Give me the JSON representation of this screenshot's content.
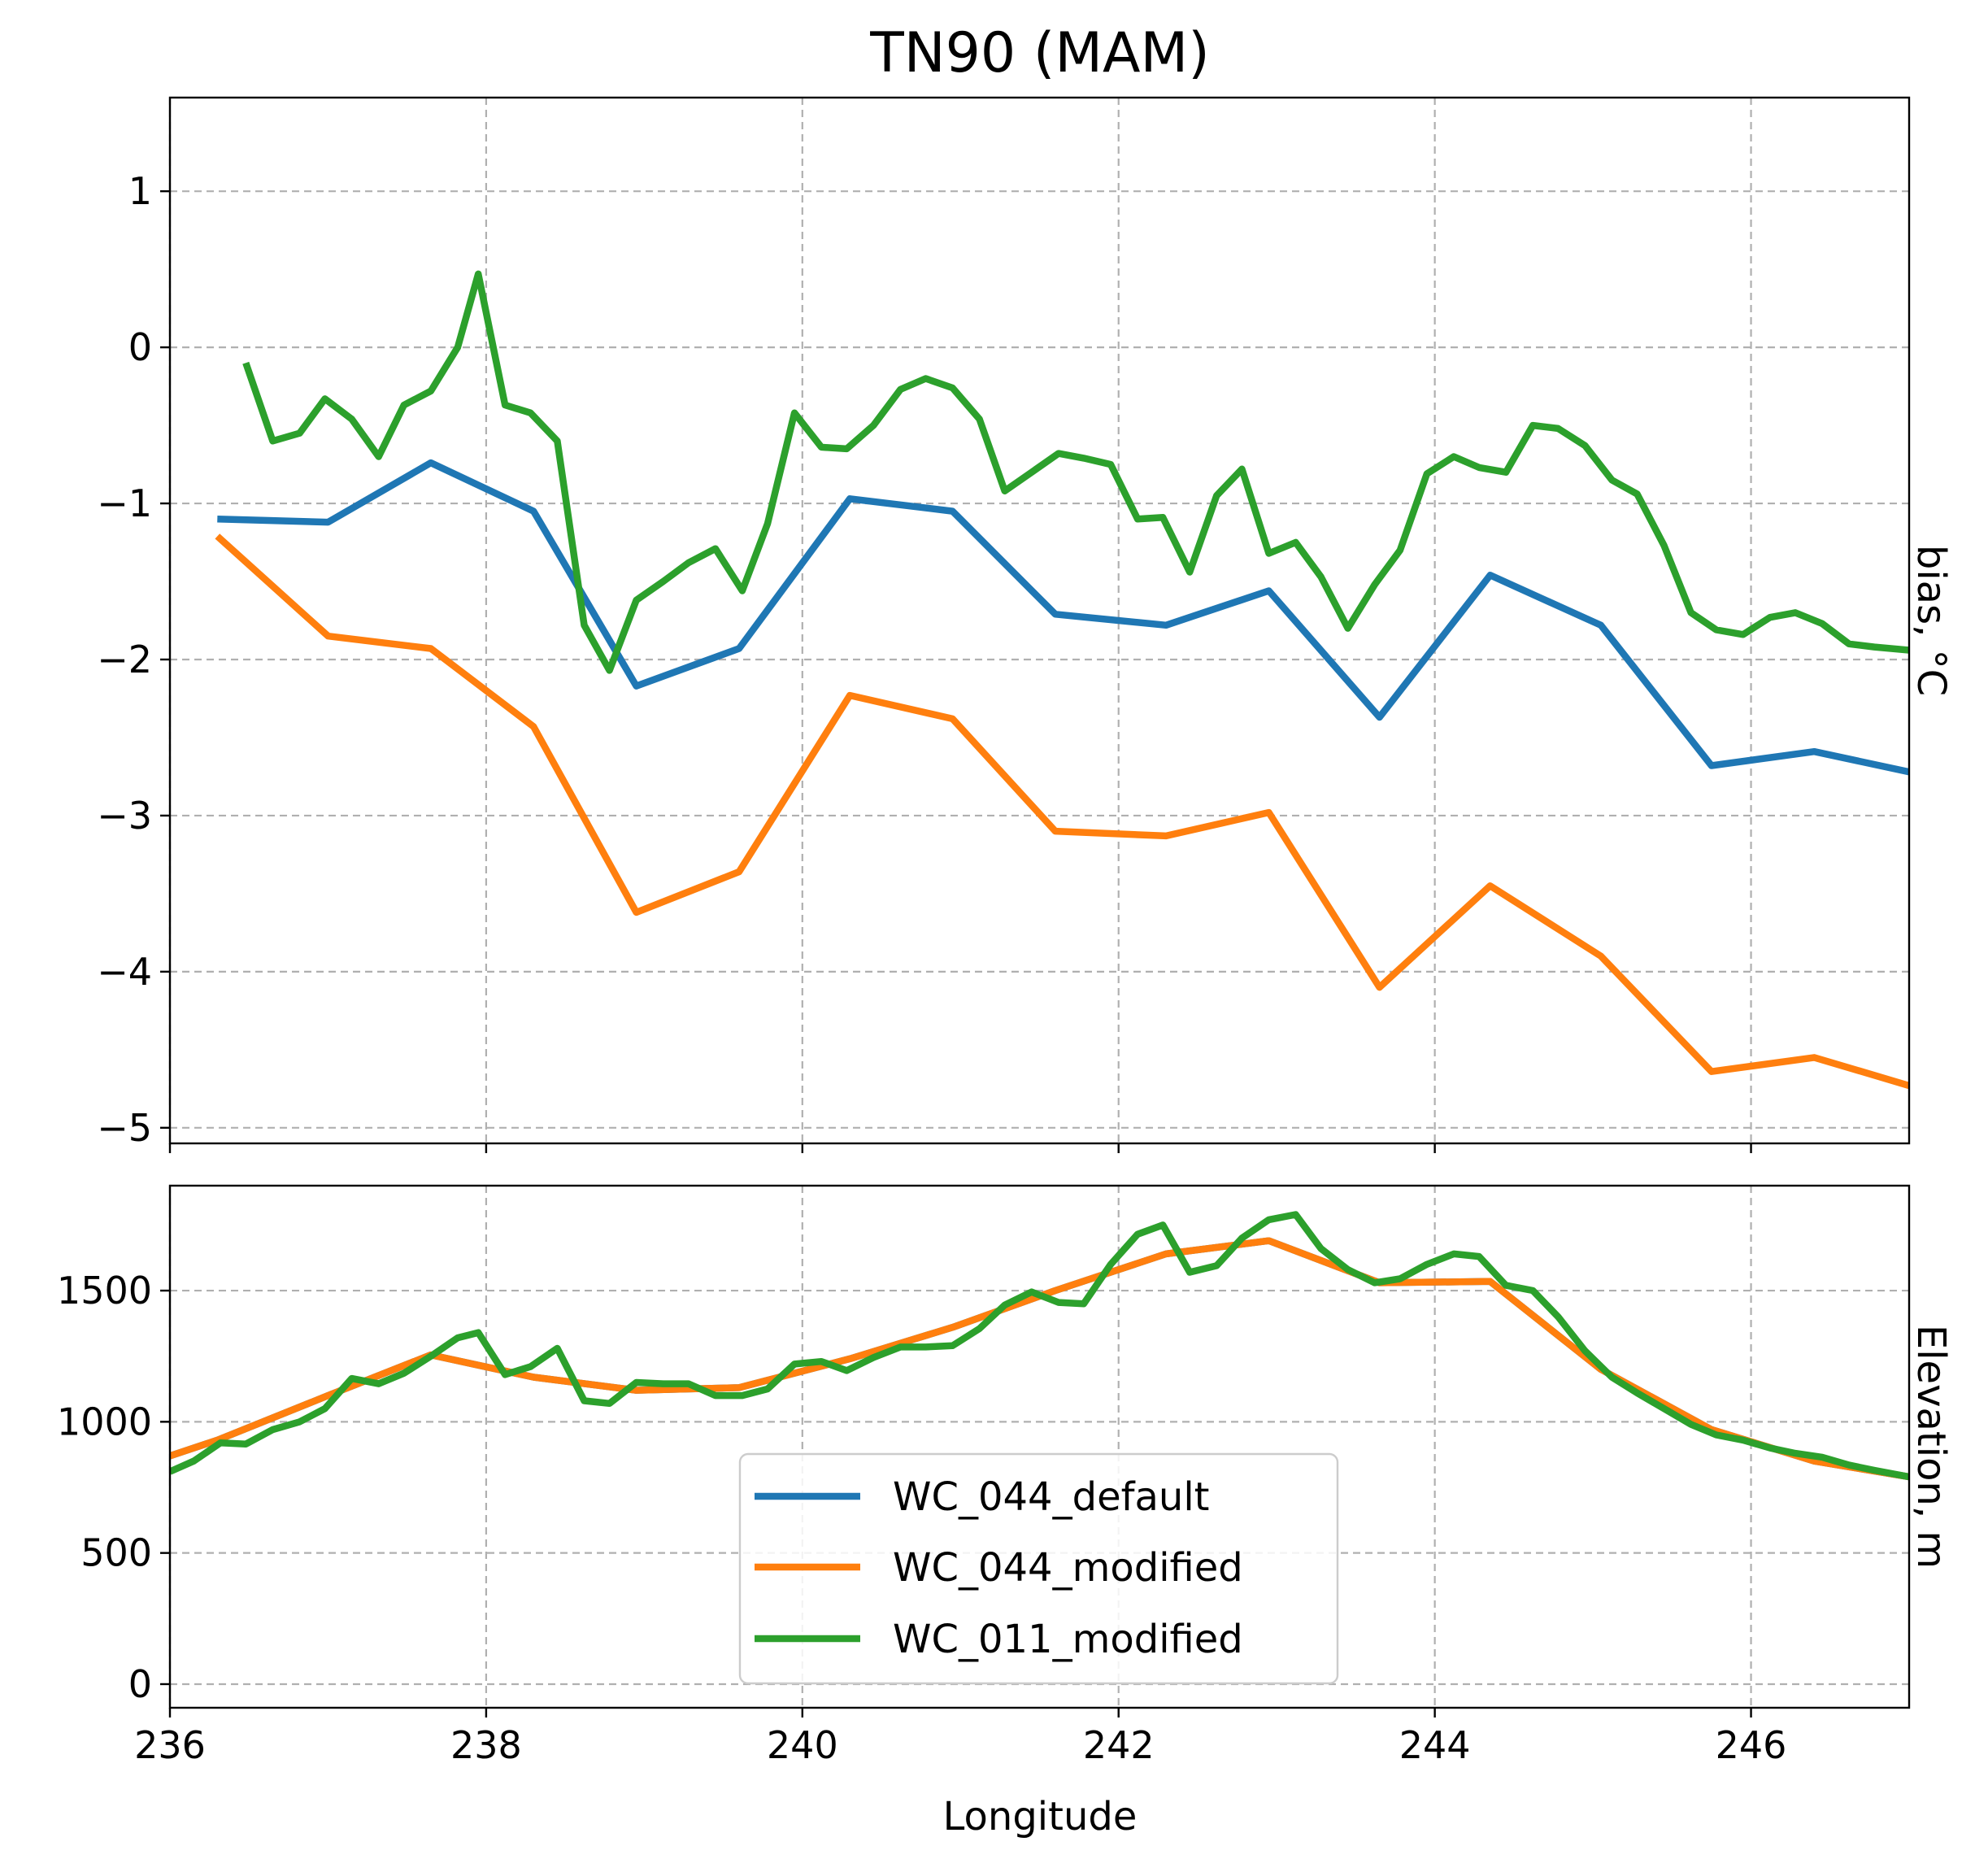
{
  "figure": {
    "title": "TN90 (MAM)",
    "xlabel": "Longitude"
  },
  "legend": {
    "placement": "lower-center of bottom panel",
    "entries": [
      "WC_044_default",
      "WC_044_modified",
      "WC_011_modified"
    ]
  },
  "colors": {
    "WC_044_default": "#1f77b4",
    "WC_044_modified": "#ff7f0e",
    "WC_011_modified": "#2ca02c"
  },
  "chart_data": [
    {
      "type": "line",
      "panel": "top",
      "title": "TN90 (MAM)",
      "xlabel": "",
      "ylabel": "bias, °C",
      "xlim": [
        236,
        247
      ],
      "ylim": [
        -5.1,
        1.6
      ],
      "xticks": [
        236,
        238,
        240,
        242,
        244,
        246
      ],
      "yticks": [
        1,
        0,
        -1,
        -2,
        -3,
        -4,
        -5
      ],
      "ytick_labels": [
        "1",
        "0",
        "−1",
        "−2",
        "−3",
        "−4",
        "−5"
      ],
      "grid": true,
      "series": [
        {
          "name": "WC_044_default",
          "x": [
            236.3,
            237.0,
            237.65,
            238.3,
            238.95,
            239.6,
            240.3,
            240.95,
            241.6,
            242.3,
            242.95,
            243.65,
            244.35,
            245.05,
            245.75,
            246.4,
            247.0
          ],
          "y": [
            -1.1,
            -1.12,
            -0.74,
            -1.05,
            -2.17,
            -1.93,
            -0.97,
            -1.05,
            -1.71,
            -1.78,
            -1.56,
            -2.37,
            -1.46,
            -1.78,
            -2.68,
            -2.59,
            -2.72
          ]
        },
        {
          "name": "WC_044_modified",
          "x": [
            236.3,
            237.0,
            237.65,
            238.3,
            238.95,
            239.6,
            240.3,
            240.95,
            241.6,
            242.3,
            242.95,
            243.65,
            244.35,
            245.05,
            245.75,
            246.4,
            247.0
          ],
          "y": [
            -1.21,
            -1.85,
            -1.93,
            -2.43,
            -3.62,
            -3.36,
            -2.23,
            -2.38,
            -3.1,
            -3.13,
            -2.98,
            -4.1,
            -3.45,
            -3.9,
            -4.64,
            -4.55,
            -4.73
          ]
        },
        {
          "name": "WC_011_modified",
          "x": [
            236.48,
            236.65,
            236.82,
            236.98,
            237.15,
            237.32,
            237.48,
            237.65,
            237.82,
            237.95,
            238.12,
            238.28,
            238.45,
            238.62,
            238.78,
            238.95,
            239.12,
            239.28,
            239.45,
            239.62,
            239.78,
            239.95,
            240.12,
            240.28,
            240.45,
            240.62,
            240.78,
            240.95,
            241.12,
            241.28,
            241.45,
            241.62,
            241.78,
            241.95,
            242.12,
            242.28,
            242.45,
            242.62,
            242.78,
            242.95,
            243.12,
            243.28,
            243.45,
            243.62,
            243.78,
            243.95,
            244.12,
            244.28,
            244.45,
            244.62,
            244.78,
            244.95,
            245.12,
            245.28,
            245.45,
            245.62,
            245.78,
            245.95,
            246.12,
            246.28,
            246.45,
            246.62,
            246.78,
            247.0
          ],
          "y": [
            -0.1,
            -0.6,
            -0.55,
            -0.33,
            -0.46,
            -0.7,
            -0.37,
            -0.28,
            0.0,
            0.47,
            -0.37,
            -0.42,
            -0.6,
            -1.78,
            -2.07,
            -1.62,
            -1.5,
            -1.38,
            -1.29,
            -1.56,
            -1.13,
            -0.42,
            -0.64,
            -0.65,
            -0.5,
            -0.27,
            -0.2,
            -0.26,
            -0.46,
            -0.92,
            -0.8,
            -0.68,
            -0.71,
            -0.75,
            -1.1,
            -1.09,
            -1.44,
            -0.95,
            -0.78,
            -1.32,
            -1.25,
            -1.47,
            -1.8,
            -1.52,
            -1.3,
            -0.81,
            -0.7,
            -0.77,
            -0.8,
            -0.5,
            -0.52,
            -0.63,
            -0.85,
            -0.94,
            -1.27,
            -1.7,
            -1.81,
            -1.84,
            -1.73,
            -1.7,
            -1.77,
            -1.9,
            -1.92,
            -1.94
          ]
        }
      ]
    },
    {
      "type": "line",
      "panel": "bottom",
      "xlabel": "Longitude",
      "ylabel": "Elevation, m",
      "xlim": [
        236,
        247
      ],
      "ylim": [
        -90,
        1900
      ],
      "xticks": [
        236,
        238,
        240,
        242,
        244,
        246
      ],
      "xtick_labels": [
        "236",
        "238",
        "240",
        "242",
        "244",
        "246"
      ],
      "yticks": [
        0,
        500,
        1000,
        1500
      ],
      "ytick_labels": [
        "0",
        "500",
        "1000",
        "1500"
      ],
      "grid": true,
      "series": [
        {
          "name": "WC_044_default",
          "x": [
            236.0,
            236.3,
            237.0,
            237.65,
            238.3,
            238.95,
            239.6,
            240.3,
            240.95,
            241.6,
            242.3,
            242.95,
            243.65,
            244.35,
            245.05,
            245.75,
            246.4,
            247.0
          ],
          "y": [
            870,
            930,
            1100,
            1255,
            1170,
            1120,
            1130,
            1240,
            1360,
            1500,
            1640,
            1690,
            1530,
            1535,
            1200,
            970,
            850,
            790
          ]
        },
        {
          "name": "WC_044_modified",
          "x": [
            236.0,
            236.3,
            237.0,
            237.65,
            238.3,
            238.95,
            239.6,
            240.3,
            240.95,
            241.6,
            242.3,
            242.95,
            243.65,
            244.35,
            245.05,
            245.75,
            246.4,
            247.0
          ],
          "y": [
            870,
            930,
            1100,
            1255,
            1170,
            1120,
            1130,
            1240,
            1360,
            1500,
            1640,
            1690,
            1530,
            1535,
            1200,
            970,
            850,
            790
          ]
        },
        {
          "name": "WC_011_modified",
          "x": [
            236.0,
            236.15,
            236.32,
            236.48,
            236.65,
            236.82,
            236.98,
            237.15,
            237.32,
            237.48,
            237.65,
            237.82,
            237.95,
            238.12,
            238.28,
            238.45,
            238.62,
            238.78,
            238.95,
            239.12,
            239.28,
            239.45,
            239.62,
            239.78,
            239.95,
            240.12,
            240.28,
            240.45,
            240.62,
            240.78,
            240.95,
            241.12,
            241.28,
            241.45,
            241.62,
            241.78,
            241.95,
            242.12,
            242.28,
            242.45,
            242.62,
            242.78,
            242.95,
            243.12,
            243.28,
            243.45,
            243.62,
            243.78,
            243.95,
            244.12,
            244.28,
            244.45,
            244.62,
            244.78,
            244.95,
            245.12,
            245.28,
            245.45,
            245.62,
            245.78,
            245.95,
            246.12,
            246.28,
            246.45,
            246.62,
            246.78,
            247.0
          ],
          "y": [
            810,
            850,
            920,
            915,
            970,
            1000,
            1050,
            1165,
            1145,
            1185,
            1250,
            1320,
            1340,
            1180,
            1210,
            1280,
            1080,
            1070,
            1150,
            1145,
            1145,
            1100,
            1100,
            1125,
            1220,
            1230,
            1195,
            1245,
            1285,
            1285,
            1290,
            1355,
            1445,
            1495,
            1455,
            1450,
            1600,
            1715,
            1750,
            1570,
            1595,
            1700,
            1770,
            1790,
            1660,
            1580,
            1530,
            1545,
            1600,
            1640,
            1630,
            1520,
            1500,
            1400,
            1270,
            1170,
            1110,
            1050,
            990,
            950,
            930,
            900,
            880,
            865,
            835,
            815,
            790
          ]
        }
      ]
    }
  ]
}
